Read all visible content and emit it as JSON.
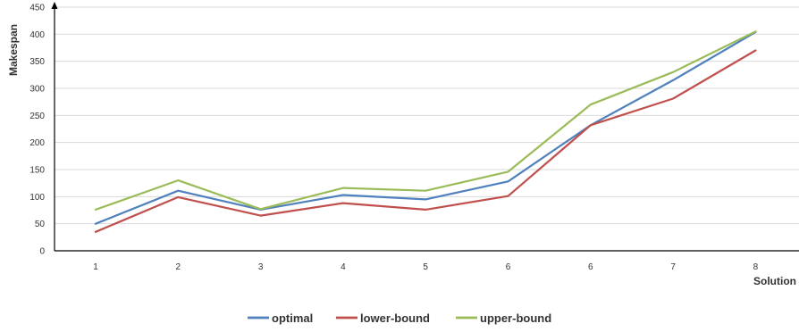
{
  "chart_data": {
    "type": "line",
    "xlabel": "Solution",
    "ylabel": "Makespan",
    "categories": [
      "1",
      "2",
      "3",
      "4",
      "5",
      "6",
      "6",
      "7",
      "8"
    ],
    "yticks": [
      0,
      50,
      100,
      150,
      200,
      250,
      300,
      350,
      400,
      450
    ],
    "ylim": [
      0,
      450
    ],
    "grid": true,
    "legend_position": "bottom",
    "series": [
      {
        "name": "optimal",
        "color": "#4f81bd",
        "values": [
          50,
          111,
          76,
          103,
          95,
          128,
          232,
          315,
          404
        ]
      },
      {
        "name": "lower-bound",
        "color": "#c0504d",
        "values": [
          35,
          99,
          65,
          88,
          76,
          101,
          232,
          281,
          370
        ]
      },
      {
        "name": "upper-bound",
        "color": "#9bbb59",
        "values": [
          76,
          130,
          77,
          116,
          111,
          146,
          270,
          330,
          405
        ]
      }
    ]
  }
}
